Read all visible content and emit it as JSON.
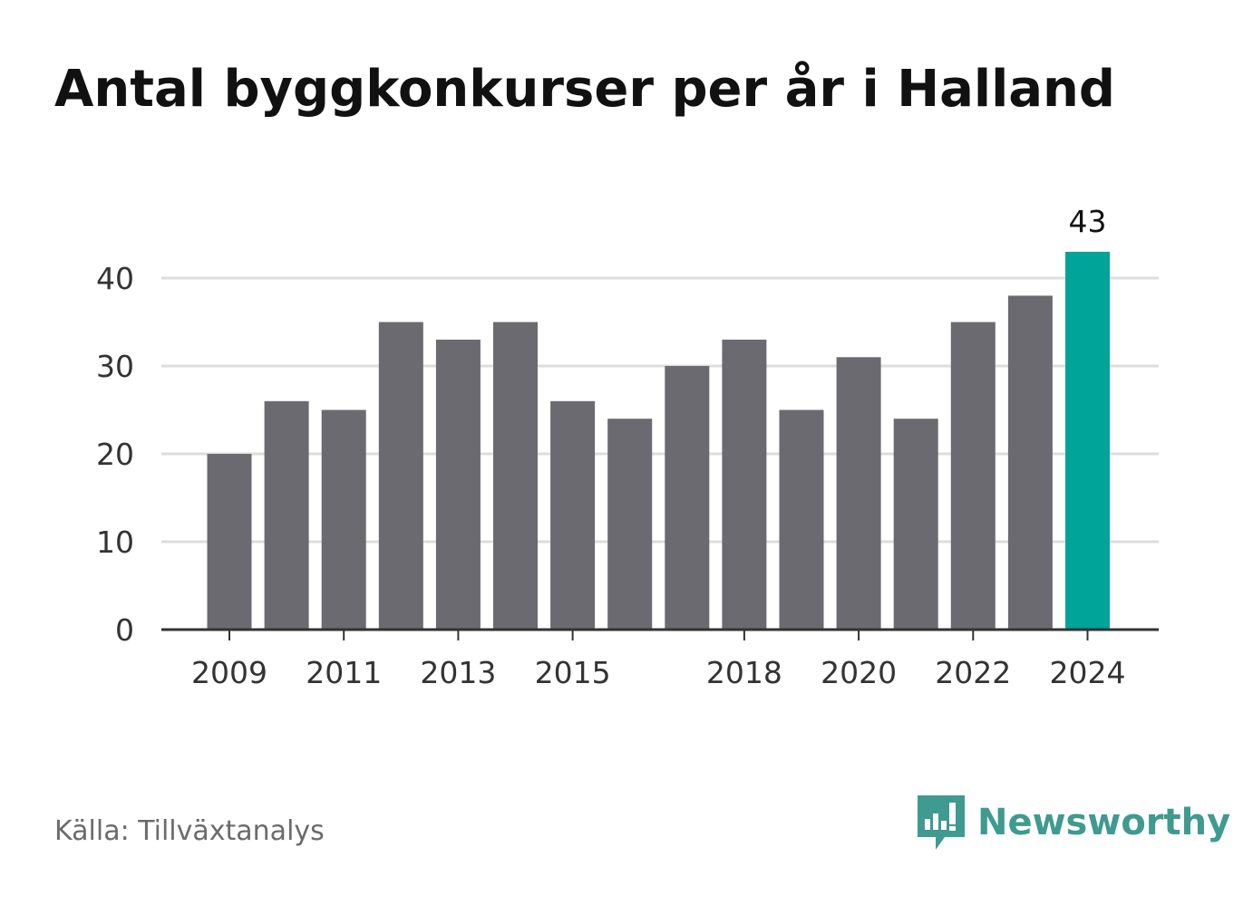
{
  "title": "Antal byggkonkurser per år i Halland",
  "source": "Källa: Tillväxtanalys",
  "brand": {
    "name": "Newsworthy",
    "icon": "newsworthy-logo-icon",
    "color": "#3f9a8f"
  },
  "colors": {
    "bar": "#6b6a70",
    "highlight": "#00a499",
    "grid": "#dddddd",
    "axis": "#333333"
  },
  "chart_data": {
    "type": "bar",
    "title": "Antal byggkonkurser per år i Halland",
    "xlabel": "",
    "ylabel": "",
    "categories": [
      "2009",
      "2010",
      "2011",
      "2012",
      "2013",
      "2014",
      "2015",
      "2016",
      "2017",
      "2018",
      "2019",
      "2020",
      "2021",
      "2022",
      "2023",
      "2024"
    ],
    "values": [
      20,
      26,
      25,
      35,
      33,
      35,
      26,
      24,
      30,
      33,
      25,
      31,
      24,
      35,
      38,
      43
    ],
    "x_tick_labels": [
      "2009",
      "2011",
      "2013",
      "2015",
      "2018",
      "2020",
      "2022",
      "2024"
    ],
    "y_ticks": [
      0,
      10,
      20,
      30,
      40
    ],
    "ylim": [
      0,
      43
    ],
    "grid": true,
    "highlight_category": "2024",
    "data_labels": [
      {
        "category": "2024",
        "text": "43"
      }
    ]
  }
}
